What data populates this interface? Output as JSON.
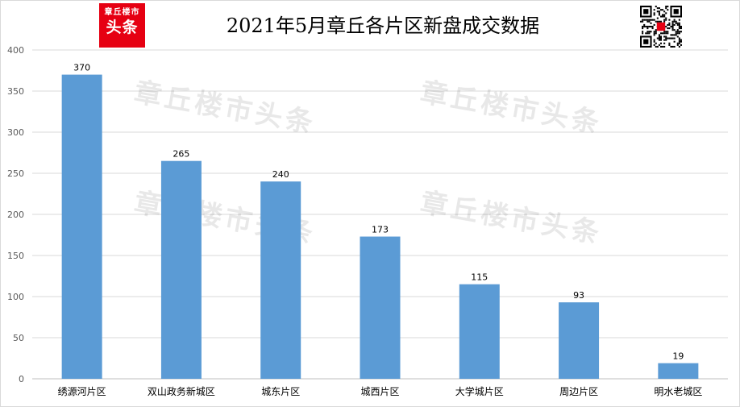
{
  "header": {
    "title": "2021年5月章丘各片区新盘成交数据",
    "logo_line1": "章丘楼市",
    "logo_line2": "头条"
  },
  "watermark": "章丘楼市头条",
  "colors": {
    "bar": "#5b9bd5",
    "logo_bg": "#e60012",
    "grid": "#d9d9d9"
  },
  "icons": {
    "logo": "brand-logo-icon",
    "qr": "qr-code-icon"
  },
  "chart_data": {
    "type": "bar",
    "title": "2021年5月章丘各片区新盘成交数据",
    "categories": [
      "绣源河片区",
      "双山政务新城区",
      "城东片区",
      "城西片区",
      "大学城片区",
      "周边片区",
      "明水老城区"
    ],
    "values": [
      370,
      265,
      240,
      173,
      115,
      93,
      19
    ],
    "ylim": [
      0,
      400
    ],
    "yticks": [
      0,
      50,
      100,
      150,
      200,
      250,
      300,
      350,
      400
    ],
    "grid": true,
    "data_labels": true,
    "legend": "none"
  }
}
